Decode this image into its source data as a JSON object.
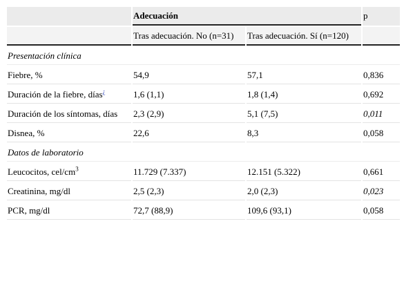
{
  "header": {
    "group_label": "Adecuación",
    "p_label": "p",
    "col_no": "Tras adecuación. No (n=31)",
    "col_si": "Tras adecuación. Sí (n=120)"
  },
  "sections": {
    "clinical": "Presentación clínica",
    "lab": "Datos de laboratorio"
  },
  "rows": {
    "fiebre": {
      "label": "Fiebre, %",
      "no": "54,9",
      "si": "57,1",
      "p": "0,836"
    },
    "duracion_fiebre": {
      "label": "Duración de la fiebre, días",
      "note": "¿",
      "no": "1,6 (1,1)",
      "si": "1,8 (1,4)",
      "p": "0,692"
    },
    "duracion_sintomas": {
      "label": "Duración de los síntomas, días",
      "no": "2,3 (2,9)",
      "si": "5,1 (7,5)",
      "p": "0,011"
    },
    "disnea": {
      "label": "Disnea, %",
      "no": "22,6",
      "si": "8,3",
      "p": "0,058"
    },
    "leucocitos": {
      "label": "Leucocitos, cel/cm",
      "sup": "3",
      "no": "11.729 (7.337)",
      "si": "12.151 (5.322)",
      "p": "0,661"
    },
    "creatinina": {
      "label": "Creatinina, mg/dl",
      "no": "2,5 (2,3)",
      "si": "2,0 (2,3)",
      "p": "0,023"
    },
    "pcr": {
      "label": "PCR, mg/dl",
      "no": "72,7 (88,9)",
      "si": "109,6 (93,1)",
      "p": "0,058"
    }
  }
}
